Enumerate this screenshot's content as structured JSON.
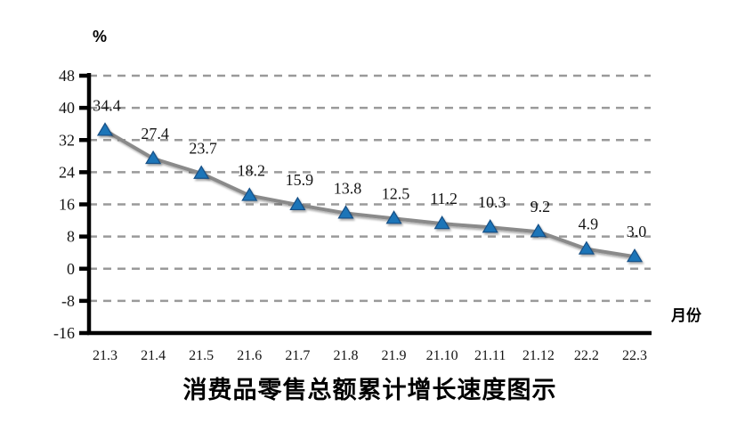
{
  "chart_data": {
    "type": "line",
    "title": "消费品零售总额累计增长速度图示",
    "ylabel": "%",
    "xlabel": "月份",
    "categories": [
      "21.3",
      "21.4",
      "21.5",
      "21.6",
      "21.7",
      "21.8",
      "21.9",
      "21.10",
      "21.11",
      "21.12",
      "22.2",
      "22.3"
    ],
    "values": [
      34.4,
      27.4,
      23.7,
      18.2,
      15.9,
      13.8,
      12.5,
      11.2,
      10.3,
      9.2,
      4.9,
      3.0
    ],
    "ylim": [
      -16,
      48
    ],
    "ytick_step": 8,
    "yticks": [
      48,
      40,
      32,
      24,
      16,
      8,
      0,
      -8,
      -16
    ],
    "grid": true,
    "grid_style": "dashed",
    "legend_position": "none",
    "marker": "triangle-up",
    "data_labels": "above",
    "colors": {
      "marker_fill": "#1F74B8",
      "marker_stroke": "#174F85",
      "line": "#8A8A8A",
      "grid": "#9A9A9A",
      "axis": "#000000",
      "text": "#141414"
    }
  }
}
